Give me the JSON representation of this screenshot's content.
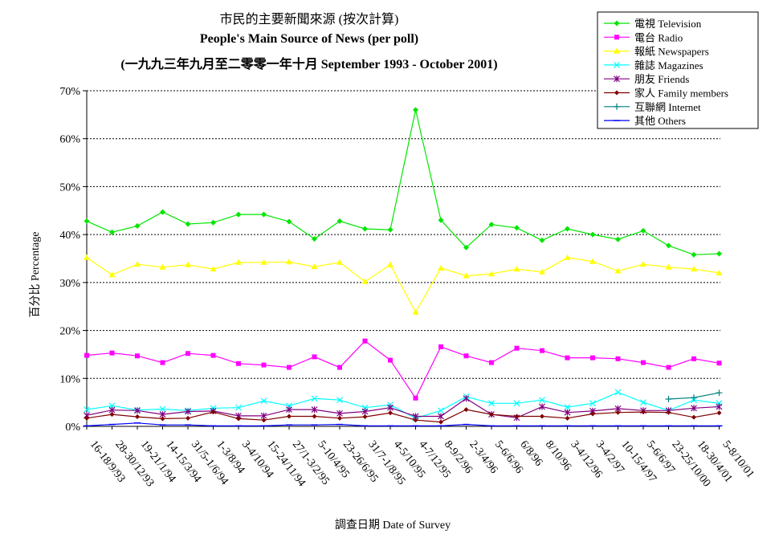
{
  "chart_data": {
    "type": "line",
    "title": "市民的主要新聞來源 (按次計算)",
    "subtitle": "People's Main Source of News (per poll)",
    "subtitle2": "(一九九三年九月至二零零一年十月 September 1993 - October 2001)",
    "xlabel": "調查日期 Date of Survey",
    "ylabel": "百分比 Percentage",
    "ylim": [
      0,
      70
    ],
    "yticks": [
      "0%",
      "10%",
      "20%",
      "30%",
      "40%",
      "50%",
      "60%",
      "70%"
    ],
    "grid": "horizontal dashed",
    "legend_position": "top-right",
    "categories": [
      "16-18/9/93",
      "28-30/12/93",
      "19-21/1/94",
      "14-15/3/94",
      "31/5-1/6/94",
      "1-3/8/94",
      "3-4/10/94",
      "15-24/11/94",
      "27/1-3/2/95",
      "5-10/4/95",
      "23-26/6/95",
      "31/7-1/8/95",
      "4-5/10/95",
      "4-7/12/95",
      "8-9/2/96",
      "2-3/4/96",
      "5-6/6/96",
      "6/8/96",
      "8/10/96",
      "3-4/12/96",
      "3-4/2/97",
      "10-15/4/97",
      "5-6/6/97",
      "23-25/10/00",
      "18-30/4/01",
      "5-8/10/01"
    ],
    "series": [
      {
        "name": "電視 Television",
        "color": "#00e600",
        "marker": "diamond",
        "values": [
          42.8,
          40.5,
          41.8,
          44.7,
          42.2,
          42.5,
          44.2,
          44.2,
          42.7,
          39.1,
          42.8,
          41.2,
          41.0,
          66.0,
          43.0,
          37.3,
          42.1,
          41.4,
          38.8,
          41.2,
          40.0,
          39.0,
          40.8,
          37.7,
          35.8,
          36.0
        ]
      },
      {
        "name": "電台 Radio",
        "color": "#ff00ff",
        "marker": "square",
        "values": [
          14.8,
          15.3,
          14.7,
          13.3,
          15.2,
          14.8,
          13.1,
          12.8,
          12.3,
          14.5,
          12.3,
          17.8,
          13.8,
          5.9,
          16.6,
          14.7,
          13.3,
          16.3,
          15.8,
          14.3,
          14.3,
          14.1,
          13.3,
          12.3,
          14.1,
          13.2
        ]
      },
      {
        "name": "報紙 Newspapers",
        "color": "#ffff00",
        "marker": "triangle",
        "values": [
          35.2,
          31.6,
          33.8,
          33.2,
          33.7,
          32.8,
          34.2,
          34.2,
          34.3,
          33.3,
          34.2,
          30.2,
          33.7,
          23.8,
          33.0,
          31.4,
          31.8,
          32.8,
          32.2,
          35.2,
          34.4,
          32.4,
          33.8,
          33.2,
          32.8,
          32.0
        ]
      },
      {
        "name": "雜誌 Magazines",
        "color": "#00ffff",
        "marker": "x",
        "values": [
          3.5,
          4.3,
          3.4,
          3.6,
          3.3,
          3.8,
          3.9,
          5.3,
          4.3,
          5.8,
          5.5,
          3.9,
          4.5,
          1.7,
          3.3,
          6.2,
          4.8,
          4.8,
          5.5,
          4.0,
          4.8,
          7.1,
          5.0,
          3.3,
          5.5,
          4.8
        ]
      },
      {
        "name": "朋友 Friends",
        "color": "#800080",
        "marker": "star",
        "values": [
          2.3,
          3.4,
          3.3,
          2.5,
          3.1,
          3.2,
          2.2,
          2.2,
          3.5,
          3.5,
          2.7,
          3.1,
          3.9,
          2.1,
          2.1,
          5.8,
          2.5,
          1.8,
          4.1,
          2.9,
          3.2,
          3.7,
          3.3,
          3.3,
          3.8,
          4.1
        ]
      },
      {
        "name": "家人 Family members",
        "color": "#800000",
        "marker": "dot",
        "values": [
          1.7,
          2.5,
          2.0,
          1.6,
          1.7,
          3.0,
          1.6,
          1.3,
          2.1,
          2.1,
          1.7,
          2.0,
          2.8,
          1.3,
          0.9,
          3.5,
          2.5,
          2.1,
          2.1,
          1.7,
          2.6,
          2.9,
          3.0,
          2.9,
          1.9,
          2.8
        ]
      },
      {
        "name": "互聯網 Internet",
        "color": "#008080",
        "marker": "plus",
        "values": [
          null,
          null,
          null,
          null,
          null,
          null,
          null,
          null,
          null,
          null,
          null,
          null,
          null,
          null,
          null,
          null,
          null,
          null,
          null,
          null,
          null,
          null,
          null,
          5.7,
          6.0,
          7.0
        ]
      },
      {
        "name": "其他 Others",
        "color": "#0000ff",
        "marker": "dash",
        "values": [
          0.1,
          0.4,
          0.7,
          0.3,
          0.3,
          0.1,
          0.1,
          0.1,
          0.3,
          0.3,
          0.4,
          0.1,
          0.1,
          0.1,
          0.1,
          0.4,
          0.1,
          0.1,
          0.1,
          0.1,
          0.1,
          0.1,
          0.1,
          0.1,
          0.1,
          0.1
        ]
      }
    ]
  }
}
